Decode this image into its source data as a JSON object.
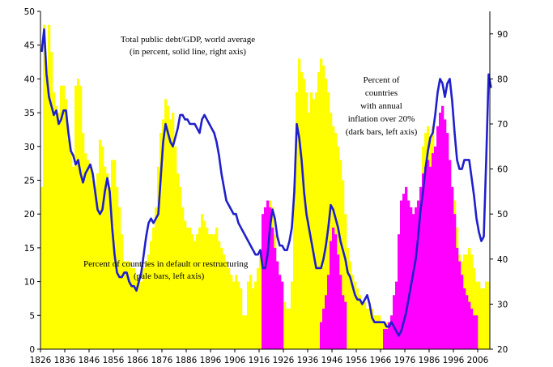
{
  "chart_data": {
    "type": "bar+line",
    "x_ticks": [
      "1826",
      "1836",
      "1846",
      "1856",
      "1866",
      "1876",
      "1886",
      "1896",
      "1906",
      "1916",
      "1926",
      "1936",
      "1946",
      "1956",
      "1966",
      "1976",
      "1986",
      "1996",
      "2006"
    ],
    "left_ticks": [
      "0",
      "5",
      "10",
      "15",
      "20",
      "25",
      "30",
      "35",
      "40",
      "45",
      "50"
    ],
    "right_ticks": [
      "20",
      "30",
      "40",
      "50",
      "60",
      "70",
      "80",
      "90"
    ],
    "ylim_left": [
      0,
      50
    ],
    "ylim_right": [
      20,
      95
    ],
    "xlim": [
      1826,
      2011
    ],
    "annotations": {
      "debt": [
        "Total public debt/GDP, world average",
        "(in percent, solid line, right axis)"
      ],
      "inflation": [
        "Percent of",
        "countries",
        "with annual",
        "inflation over 20%",
        "(dark bars, left axis)"
      ],
      "default": [
        "Percent of countries in default or restructuring",
        "(pale bars, left axis)"
      ]
    },
    "colors": {
      "default_bars": "#ffff00",
      "inflation_bars": "#ff00ff",
      "debt_line": "#1f1fcc"
    },
    "default_pct": [
      [
        1826,
        24
      ],
      [
        1827,
        48
      ],
      [
        1828,
        40
      ],
      [
        1829,
        48
      ],
      [
        1830,
        44
      ],
      [
        1831,
        38
      ],
      [
        1832,
        36
      ],
      [
        1833,
        35
      ],
      [
        1834,
        39
      ],
      [
        1835,
        39
      ],
      [
        1836,
        37
      ],
      [
        1837,
        31
      ],
      [
        1838,
        29
      ],
      [
        1839,
        27
      ],
      [
        1840,
        39
      ],
      [
        1841,
        40
      ],
      [
        1842,
        39
      ],
      [
        1843,
        32
      ],
      [
        1844,
        29
      ],
      [
        1845,
        28
      ],
      [
        1846,
        27
      ],
      [
        1847,
        25
      ],
      [
        1848,
        24
      ],
      [
        1849,
        26
      ],
      [
        1850,
        31
      ],
      [
        1851,
        30
      ],
      [
        1852,
        27
      ],
      [
        1853,
        26
      ],
      [
        1854,
        24
      ],
      [
        1855,
        28
      ],
      [
        1856,
        28
      ],
      [
        1857,
        24
      ],
      [
        1858,
        21
      ],
      [
        1859,
        17
      ],
      [
        1860,
        13
      ],
      [
        1861,
        13
      ],
      [
        1862,
        13
      ],
      [
        1863,
        12
      ],
      [
        1864,
        12
      ],
      [
        1865,
        11
      ],
      [
        1866,
        10
      ],
      [
        1867,
        10
      ],
      [
        1868,
        12
      ],
      [
        1869,
        13
      ],
      [
        1870,
        14
      ],
      [
        1871,
        16
      ],
      [
        1872,
        18
      ],
      [
        1873,
        21
      ],
      [
        1874,
        27
      ],
      [
        1875,
        32
      ],
      [
        1876,
        34
      ],
      [
        1877,
        37
      ],
      [
        1878,
        36
      ],
      [
        1879,
        34
      ],
      [
        1880,
        35
      ],
      [
        1881,
        30
      ],
      [
        1882,
        26
      ],
      [
        1883,
        24
      ],
      [
        1884,
        21
      ],
      [
        1885,
        19
      ],
      [
        1886,
        18
      ],
      [
        1887,
        18
      ],
      [
        1888,
        17
      ],
      [
        1889,
        16
      ],
      [
        1890,
        17
      ],
      [
        1891,
        18
      ],
      [
        1892,
        20
      ],
      [
        1893,
        19
      ],
      [
        1894,
        18
      ],
      [
        1895,
        17
      ],
      [
        1896,
        17
      ],
      [
        1897,
        17
      ],
      [
        1898,
        18
      ],
      [
        1899,
        16
      ],
      [
        1900,
        15
      ],
      [
        1901,
        14
      ],
      [
        1902,
        13
      ],
      [
        1903,
        12
      ],
      [
        1904,
        11
      ],
      [
        1905,
        10
      ],
      [
        1906,
        11
      ],
      [
        1907,
        10
      ],
      [
        1908,
        9
      ],
      [
        1909,
        5
      ],
      [
        1910,
        5
      ],
      [
        1911,
        10
      ],
      [
        1912,
        11
      ],
      [
        1913,
        9
      ],
      [
        1914,
        10
      ],
      [
        1915,
        12
      ],
      [
        1916,
        14
      ],
      [
        1917,
        19
      ],
      [
        1918,
        20
      ],
      [
        1919,
        21
      ],
      [
        1920,
        22
      ],
      [
        1921,
        21
      ],
      [
        1922,
        17
      ],
      [
        1923,
        13
      ],
      [
        1924,
        10
      ],
      [
        1925,
        9
      ],
      [
        1926,
        7
      ],
      [
        1927,
        6
      ],
      [
        1928,
        6
      ],
      [
        1929,
        10
      ],
      [
        1930,
        24
      ],
      [
        1931,
        38
      ],
      [
        1932,
        43
      ],
      [
        1933,
        41
      ],
      [
        1934,
        40
      ],
      [
        1935,
        38
      ],
      [
        1936,
        35
      ],
      [
        1937,
        38
      ],
      [
        1938,
        37
      ],
      [
        1939,
        38
      ],
      [
        1940,
        41
      ],
      [
        1941,
        43
      ],
      [
        1942,
        42
      ],
      [
        1943,
        40
      ],
      [
        1944,
        38
      ],
      [
        1945,
        35
      ],
      [
        1946,
        33
      ],
      [
        1947,
        32
      ],
      [
        1948,
        30
      ],
      [
        1949,
        28
      ],
      [
        1950,
        25
      ],
      [
        1951,
        20
      ],
      [
        1952,
        15
      ],
      [
        1953,
        13
      ],
      [
        1954,
        11
      ],
      [
        1955,
        10
      ],
      [
        1956,
        9
      ],
      [
        1957,
        8
      ],
      [
        1958,
        7
      ],
      [
        1959,
        7
      ],
      [
        1960,
        6
      ],
      [
        1961,
        6
      ],
      [
        1962,
        6
      ],
      [
        1963,
        5
      ],
      [
        1964,
        5
      ],
      [
        1965,
        5
      ],
      [
        1966,
        4
      ],
      [
        1967,
        4
      ],
      [
        1968,
        4
      ],
      [
        1969,
        3
      ],
      [
        1970,
        3
      ],
      [
        1971,
        3
      ],
      [
        1972,
        4
      ],
      [
        1973,
        5
      ],
      [
        1974,
        6
      ],
      [
        1975,
        8
      ],
      [
        1976,
        10
      ],
      [
        1977,
        12
      ],
      [
        1978,
        14
      ],
      [
        1979,
        16
      ],
      [
        1980,
        17
      ],
      [
        1981,
        20
      ],
      [
        1982,
        24
      ],
      [
        1983,
        30
      ],
      [
        1984,
        32
      ],
      [
        1985,
        33
      ],
      [
        1986,
        31
      ],
      [
        1987,
        33
      ],
      [
        1988,
        30
      ],
      [
        1989,
        32
      ],
      [
        1990,
        33
      ],
      [
        1991,
        32
      ],
      [
        1992,
        31
      ],
      [
        1993,
        29
      ],
      [
        1994,
        27
      ],
      [
        1995,
        24
      ],
      [
        1996,
        22
      ],
      [
        1997,
        18
      ],
      [
        1998,
        14
      ],
      [
        1999,
        13
      ],
      [
        2000,
        14
      ],
      [
        2001,
        14
      ],
      [
        2002,
        15
      ],
      [
        2003,
        14
      ],
      [
        2004,
        12
      ],
      [
        2005,
        10
      ],
      [
        2006,
        10
      ],
      [
        2007,
        9
      ],
      [
        2008,
        9
      ],
      [
        2009,
        10
      ],
      [
        2010,
        10
      ]
    ],
    "inflation_pct": [
      [
        1917,
        20
      ],
      [
        1918,
        21
      ],
      [
        1919,
        22
      ],
      [
        1920,
        21
      ],
      [
        1921,
        18
      ],
      [
        1922,
        15
      ],
      [
        1923,
        13
      ],
      [
        1924,
        11
      ],
      [
        1925,
        10
      ],
      [
        1941,
        4
      ],
      [
        1942,
        6
      ],
      [
        1943,
        8
      ],
      [
        1944,
        11
      ],
      [
        1945,
        16
      ],
      [
        1946,
        18
      ],
      [
        1947,
        17
      ],
      [
        1948,
        14
      ],
      [
        1949,
        11
      ],
      [
        1950,
        8
      ],
      [
        1951,
        7
      ],
      [
        1967,
        3
      ],
      [
        1968,
        3
      ],
      [
        1969,
        4
      ],
      [
        1970,
        5
      ],
      [
        1971,
        8
      ],
      [
        1972,
        10
      ],
      [
        1973,
        17
      ],
      [
        1974,
        22
      ],
      [
        1975,
        23
      ],
      [
        1976,
        24
      ],
      [
        1977,
        22
      ],
      [
        1978,
        21
      ],
      [
        1979,
        20
      ],
      [
        1980,
        21
      ],
      [
        1981,
        22
      ],
      [
        1982,
        24
      ],
      [
        1983,
        26
      ],
      [
        1984,
        27
      ],
      [
        1985,
        28
      ],
      [
        1986,
        27
      ],
      [
        1987,
        29
      ],
      [
        1988,
        30
      ],
      [
        1989,
        33
      ],
      [
        1990,
        35
      ],
      [
        1991,
        36
      ],
      [
        1992,
        34
      ],
      [
        1993,
        32
      ],
      [
        1994,
        28
      ],
      [
        1995,
        24
      ],
      [
        1996,
        20
      ],
      [
        1997,
        15
      ],
      [
        1998,
        13
      ],
      [
        1999,
        11
      ],
      [
        2000,
        9
      ],
      [
        2001,
        8
      ],
      [
        2002,
        7
      ],
      [
        2003,
        6
      ],
      [
        2004,
        5
      ],
      [
        2005,
        5
      ]
    ],
    "debt_gdp": [
      [
        1826,
        86
      ],
      [
        1827,
        91
      ],
      [
        1828,
        81
      ],
      [
        1829,
        76
      ],
      [
        1830,
        74
      ],
      [
        1831,
        72
      ],
      [
        1832,
        73
      ],
      [
        1833,
        70
      ],
      [
        1834,
        71
      ],
      [
        1835,
        73
      ],
      [
        1836,
        73
      ],
      [
        1837,
        68
      ],
      [
        1838,
        64
      ],
      [
        1839,
        63
      ],
      [
        1840,
        61
      ],
      [
        1841,
        62
      ],
      [
        1842,
        59
      ],
      [
        1843,
        57
      ],
      [
        1844,
        59
      ],
      [
        1845,
        60
      ],
      [
        1846,
        61
      ],
      [
        1847,
        59
      ],
      [
        1848,
        55
      ],
      [
        1849,
        51
      ],
      [
        1850,
        50
      ],
      [
        1851,
        51
      ],
      [
        1852,
        55
      ],
      [
        1853,
        58
      ],
      [
        1854,
        55
      ],
      [
        1855,
        47
      ],
      [
        1856,
        41
      ],
      [
        1857,
        37
      ],
      [
        1858,
        36
      ],
      [
        1859,
        36
      ],
      [
        1860,
        37
      ],
      [
        1861,
        37
      ],
      [
        1862,
        35
      ],
      [
        1863,
        34
      ],
      [
        1864,
        34
      ],
      [
        1865,
        33
      ],
      [
        1866,
        35
      ],
      [
        1867,
        37
      ],
      [
        1868,
        41
      ],
      [
        1869,
        45
      ],
      [
        1870,
        48
      ],
      [
        1871,
        49
      ],
      [
        1872,
        48
      ],
      [
        1873,
        49
      ],
      [
        1874,
        50
      ],
      [
        1875,
        58
      ],
      [
        1876,
        66
      ],
      [
        1877,
        70
      ],
      [
        1878,
        68
      ],
      [
        1879,
        66
      ],
      [
        1880,
        65
      ],
      [
        1881,
        67
      ],
      [
        1882,
        69
      ],
      [
        1883,
        72
      ],
      [
        1884,
        72
      ],
      [
        1885,
        71
      ],
      [
        1886,
        71
      ],
      [
        1887,
        70
      ],
      [
        1888,
        70
      ],
      [
        1889,
        70
      ],
      [
        1890,
        69
      ],
      [
        1891,
        68
      ],
      [
        1892,
        71
      ],
      [
        1893,
        72
      ],
      [
        1894,
        71
      ],
      [
        1895,
        70
      ],
      [
        1896,
        69
      ],
      [
        1897,
        68
      ],
      [
        1898,
        66
      ],
      [
        1899,
        63
      ],
      [
        1900,
        59
      ],
      [
        1901,
        56
      ],
      [
        1902,
        53
      ],
      [
        1903,
        52
      ],
      [
        1904,
        51
      ],
      [
        1905,
        50
      ],
      [
        1906,
        50
      ],
      [
        1907,
        48
      ],
      [
        1908,
        47
      ],
      [
        1909,
        46
      ],
      [
        1910,
        45
      ],
      [
        1911,
        44
      ],
      [
        1912,
        43
      ],
      [
        1913,
        42
      ],
      [
        1914,
        41
      ],
      [
        1915,
        41
      ],
      [
        1916,
        42
      ],
      [
        1917,
        38
      ],
      [
        1918,
        38
      ],
      [
        1919,
        41
      ],
      [
        1920,
        47
      ],
      [
        1921,
        51
      ],
      [
        1922,
        49
      ],
      [
        1923,
        45
      ],
      [
        1924,
        43
      ],
      [
        1925,
        43
      ],
      [
        1926,
        42
      ],
      [
        1927,
        42
      ],
      [
        1928,
        44
      ],
      [
        1929,
        47
      ],
      [
        1930,
        55
      ],
      [
        1931,
        70
      ],
      [
        1932,
        67
      ],
      [
        1933,
        62
      ],
      [
        1934,
        55
      ],
      [
        1935,
        50
      ],
      [
        1936,
        47
      ],
      [
        1937,
        44
      ],
      [
        1938,
        41
      ],
      [
        1939,
        38
      ],
      [
        1940,
        38
      ],
      [
        1941,
        38
      ],
      [
        1942,
        40
      ],
      [
        1943,
        43
      ],
      [
        1944,
        47
      ],
      [
        1945,
        52
      ],
      [
        1946,
        51
      ],
      [
        1947,
        49
      ],
      [
        1948,
        47
      ],
      [
        1949,
        44
      ],
      [
        1950,
        42
      ],
      [
        1951,
        40
      ],
      [
        1952,
        37
      ],
      [
        1953,
        36
      ],
      [
        1954,
        34
      ],
      [
        1955,
        32
      ],
      [
        1956,
        31
      ],
      [
        1957,
        31
      ],
      [
        1958,
        30
      ],
      [
        1959,
        31
      ],
      [
        1960,
        32
      ],
      [
        1961,
        30
      ],
      [
        1962,
        27
      ],
      [
        1963,
        26
      ],
      [
        1964,
        26
      ],
      [
        1965,
        26
      ],
      [
        1966,
        26
      ],
      [
        1967,
        26
      ],
      [
        1968,
        25
      ],
      [
        1969,
        25
      ],
      [
        1970,
        26
      ],
      [
        1971,
        25
      ],
      [
        1972,
        24
      ],
      [
        1973,
        23
      ],
      [
        1974,
        24
      ],
      [
        1975,
        26
      ],
      [
        1976,
        28
      ],
      [
        1977,
        31
      ],
      [
        1978,
        34
      ],
      [
        1979,
        37
      ],
      [
        1980,
        40
      ],
      [
        1981,
        45
      ],
      [
        1982,
        51
      ],
      [
        1983,
        55
      ],
      [
        1984,
        60
      ],
      [
        1985,
        64
      ],
      [
        1986,
        67
      ],
      [
        1987,
        68
      ],
      [
        1988,
        72
      ],
      [
        1989,
        77
      ],
      [
        1990,
        80
      ],
      [
        1991,
        79
      ],
      [
        1992,
        76
      ],
      [
        1993,
        79
      ],
      [
        1994,
        80
      ],
      [
        1995,
        75
      ],
      [
        1996,
        68
      ],
      [
        1997,
        62
      ],
      [
        1998,
        60
      ],
      [
        1999,
        60
      ],
      [
        2000,
        62
      ],
      [
        2001,
        62
      ],
      [
        2002,
        62
      ],
      [
        2003,
        58
      ],
      [
        2004,
        54
      ],
      [
        2005,
        49
      ],
      [
        2006,
        46
      ],
      [
        2007,
        44
      ],
      [
        2008,
        45
      ],
      [
        2009,
        62
      ],
      [
        2010,
        81
      ],
      [
        2011,
        78
      ]
    ]
  }
}
